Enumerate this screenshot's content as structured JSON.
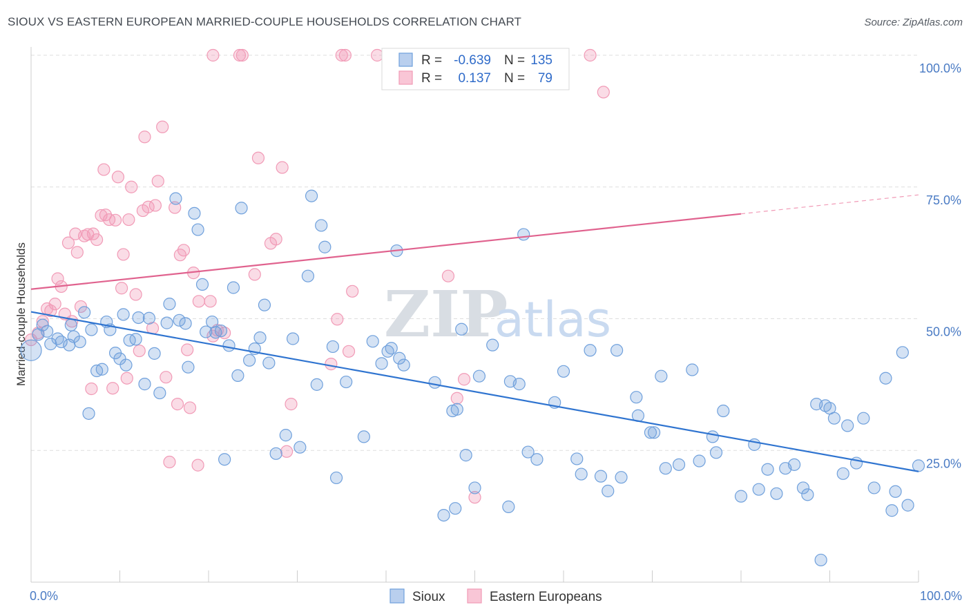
{
  "title": "SIOUX VS EASTERN EUROPEAN MARRIED-COUPLE HOUSEHOLDS CORRELATION CHART",
  "source": "Source: ZipAtlas.com",
  "watermark": {
    "zip": "ZIP",
    "atlas": "atlas"
  },
  "colors": {
    "sioux": "#6fa0dc",
    "sioux_line": "#2f74d0",
    "eastern": "#f19ab6",
    "eastern_line": "#e0628e",
    "tick_label": "#4a7bc4"
  },
  "legend_box": {
    "rows": [
      {
        "r_label": "R =",
        "r_value": "-0.639",
        "n_label": "N =",
        "n_value": "135"
      },
      {
        "r_label": "R =",
        "r_value": "0.137",
        "n_label": "N =",
        "n_value": "79"
      }
    ]
  },
  "bottom_legend": [
    "Sioux",
    "Eastern Europeans"
  ],
  "chart_data": {
    "type": "scatter",
    "title": "SIOUX VS EASTERN EUROPEAN MARRIED-COUPLE HOUSEHOLDS CORRELATION CHART",
    "xlabel": "",
    "ylabel": "Married-couple Households",
    "xlim": [
      0,
      100
    ],
    "ylim": [
      0,
      100
    ],
    "x_tick_labels": [
      "0.0%",
      "100.0%"
    ],
    "y_ticks": [
      25,
      50,
      75,
      100
    ],
    "y_tick_labels": [
      "25.0%",
      "50.0%",
      "75.0%",
      "100.0%"
    ],
    "grid": true,
    "legend_position": "top-center",
    "series": [
      {
        "name": "Sioux",
        "r": -0.639,
        "n": 135,
        "trend": {
          "x0": 0,
          "y0": 51.3,
          "x1": 100,
          "y1": 21.0
        },
        "points": [
          [
            0,
            44
          ],
          [
            0.8,
            47
          ],
          [
            1.3,
            48.8
          ],
          [
            1.8,
            47.6
          ],
          [
            2.2,
            45.2
          ],
          [
            3.0,
            46.2
          ],
          [
            3.4,
            45.6
          ],
          [
            4.3,
            45.0
          ],
          [
            4.5,
            48.8
          ],
          [
            4.8,
            46.6
          ],
          [
            5.5,
            45.6
          ],
          [
            6.0,
            51.2
          ],
          [
            6.5,
            32.0
          ],
          [
            6.8,
            47.9
          ],
          [
            7.4,
            40.1
          ],
          [
            8.0,
            40.4
          ],
          [
            8.5,
            49.4
          ],
          [
            8.9,
            47.9
          ],
          [
            9.5,
            43.5
          ],
          [
            10.0,
            42.4
          ],
          [
            10.4,
            50.8
          ],
          [
            10.7,
            41.2
          ],
          [
            11.1,
            45.9
          ],
          [
            11.8,
            46.1
          ],
          [
            12.1,
            50.2
          ],
          [
            12.8,
            37.6
          ],
          [
            13.3,
            50.1
          ],
          [
            13.9,
            43.4
          ],
          [
            14.5,
            35.9
          ],
          [
            15.3,
            49.2
          ],
          [
            15.6,
            52.8
          ],
          [
            16.3,
            72.8
          ],
          [
            16.7,
            49.7
          ],
          [
            17.4,
            49.1
          ],
          [
            17.7,
            40.8
          ],
          [
            18.4,
            70.0
          ],
          [
            18.8,
            66.9
          ],
          [
            19.3,
            56.5
          ],
          [
            19.7,
            47.5
          ],
          [
            20.4,
            49.4
          ],
          [
            20.8,
            47.4
          ],
          [
            21.4,
            47.7
          ],
          [
            21.8,
            23.3
          ],
          [
            22.3,
            44.9
          ],
          [
            22.8,
            55.9
          ],
          [
            23.3,
            39.2
          ],
          [
            23.7,
            71.0
          ],
          [
            24.6,
            42.1
          ],
          [
            25.2,
            44.3
          ],
          [
            25.8,
            46.4
          ],
          [
            26.3,
            52.6
          ],
          [
            26.8,
            41.6
          ],
          [
            27.6,
            24.4
          ],
          [
            28.7,
            27.9
          ],
          [
            29.5,
            46.2
          ],
          [
            30.3,
            25.6
          ],
          [
            31.2,
            58.1
          ],
          [
            31.6,
            73.3
          ],
          [
            32.2,
            37.5
          ],
          [
            32.7,
            67.7
          ],
          [
            33.1,
            63.6
          ],
          [
            34.0,
            44.7
          ],
          [
            34.4,
            19.8
          ],
          [
            35.5,
            38.0
          ],
          [
            37.5,
            27.6
          ],
          [
            38.5,
            45.7
          ],
          [
            39.5,
            41.5
          ],
          [
            40.2,
            43.8
          ],
          [
            40.6,
            44.4
          ],
          [
            41.2,
            62.9
          ],
          [
            41.5,
            42.5
          ],
          [
            42.0,
            41.2
          ],
          [
            45.5,
            37.9
          ],
          [
            46.5,
            12.7
          ],
          [
            47.5,
            32.5
          ],
          [
            47.8,
            14.0
          ],
          [
            48.0,
            32.8
          ],
          [
            48.5,
            48.0
          ],
          [
            49.0,
            24.1
          ],
          [
            50.0,
            17.9
          ],
          [
            50.5,
            39.1
          ],
          [
            52.0,
            45.0
          ],
          [
            53.8,
            14.3
          ],
          [
            54.0,
            38.1
          ],
          [
            55.0,
            37.6
          ],
          [
            55.5,
            66.0
          ],
          [
            56.0,
            24.7
          ],
          [
            57.0,
            23.3
          ],
          [
            59.0,
            34.1
          ],
          [
            60.0,
            40.0
          ],
          [
            61.5,
            23.4
          ],
          [
            62.0,
            20.5
          ],
          [
            63.0,
            44.0
          ],
          [
            64.2,
            20.1
          ],
          [
            65.0,
            17.3
          ],
          [
            66.0,
            44.0
          ],
          [
            66.5,
            19.9
          ],
          [
            68.2,
            35.1
          ],
          [
            68.4,
            31.6
          ],
          [
            69.8,
            28.4
          ],
          [
            70.2,
            28.4
          ],
          [
            71.0,
            39.1
          ],
          [
            71.5,
            21.6
          ],
          [
            73.0,
            22.3
          ],
          [
            74.5,
            40.3
          ],
          [
            75.3,
            23.0
          ],
          [
            76.8,
            27.6
          ],
          [
            77.2,
            24.6
          ],
          [
            78.0,
            32.5
          ],
          [
            80.0,
            16.3
          ],
          [
            81.5,
            26.1
          ],
          [
            82.0,
            17.6
          ],
          [
            83.0,
            21.4
          ],
          [
            84.0,
            16.8
          ],
          [
            85.0,
            21.6
          ],
          [
            86.0,
            22.3
          ],
          [
            87.0,
            17.9
          ],
          [
            87.5,
            16.6
          ],
          [
            88.5,
            33.8
          ],
          [
            89.0,
            4.2
          ],
          [
            89.5,
            33.5
          ],
          [
            90.0,
            33.0
          ],
          [
            90.5,
            31.1
          ],
          [
            91.5,
            20.6
          ],
          [
            92.0,
            29.7
          ],
          [
            93.0,
            22.6
          ],
          [
            93.8,
            31.1
          ],
          [
            95.0,
            17.9
          ],
          [
            96.3,
            38.7
          ],
          [
            97.0,
            13.6
          ],
          [
            97.4,
            17.2
          ],
          [
            98.2,
            43.6
          ],
          [
            98.8,
            14.6
          ],
          [
            100.0,
            22.1
          ]
        ]
      },
      {
        "name": "Eastern Europeans",
        "r": 0.137,
        "n": 79,
        "trend": {
          "x0": 0,
          "y0": 55.6,
          "x1": 80,
          "y1": 69.9,
          "x_dash_end": 100,
          "y_dash_end": 73.5
        },
        "points": [
          [
            0,
            46
          ],
          [
            0.8,
            47.3
          ],
          [
            1.3,
            49.5
          ],
          [
            1.8,
            51.9
          ],
          [
            2.2,
            51.5
          ],
          [
            2.7,
            52.8
          ],
          [
            3.0,
            57.6
          ],
          [
            3.4,
            56.1
          ],
          [
            3.8,
            50.9
          ],
          [
            4.2,
            64.4
          ],
          [
            4.6,
            49.5
          ],
          [
            5.0,
            66.1
          ],
          [
            5.2,
            62.6
          ],
          [
            5.6,
            52.3
          ],
          [
            6.0,
            65.7
          ],
          [
            6.4,
            66.0
          ],
          [
            6.8,
            36.7
          ],
          [
            7.0,
            66.1
          ],
          [
            7.4,
            65.0
          ],
          [
            7.9,
            69.6
          ],
          [
            8.2,
            78.3
          ],
          [
            8.4,
            69.7
          ],
          [
            8.8,
            68.8
          ],
          [
            9.2,
            36.8
          ],
          [
            9.5,
            68.7
          ],
          [
            9.8,
            76.9
          ],
          [
            10.2,
            55.8
          ],
          [
            10.4,
            62.2
          ],
          [
            10.8,
            38.7
          ],
          [
            11.0,
            68.8
          ],
          [
            11.3,
            75.0
          ],
          [
            11.8,
            54.6
          ],
          [
            12.2,
            43.9
          ],
          [
            12.6,
            70.5
          ],
          [
            12.8,
            84.5
          ],
          [
            13.2,
            71.2
          ],
          [
            13.7,
            48.2
          ],
          [
            14.0,
            71.5
          ],
          [
            14.3,
            76.1
          ],
          [
            14.8,
            86.4
          ],
          [
            15.2,
            38.9
          ],
          [
            15.6,
            22.8
          ],
          [
            16.2,
            71.1
          ],
          [
            16.5,
            33.8
          ],
          [
            16.8,
            62.1
          ],
          [
            17.2,
            63.0
          ],
          [
            17.6,
            44.1
          ],
          [
            17.9,
            33.1
          ],
          [
            18.3,
            58.7
          ],
          [
            18.8,
            22.2
          ],
          [
            18.9,
            53.3
          ],
          [
            20.2,
            53.3
          ],
          [
            20.5,
            46.7
          ],
          [
            21.0,
            47.8
          ],
          [
            21.8,
            47.3
          ],
          [
            20.5,
            100
          ],
          [
            23.5,
            100
          ],
          [
            23.8,
            100
          ],
          [
            25.2,
            58.4
          ],
          [
            25.6,
            80.5
          ],
          [
            27.0,
            64.3
          ],
          [
            27.6,
            65.1
          ],
          [
            28.3,
            78.7
          ],
          [
            28.8,
            24.8
          ],
          [
            29.3,
            33.8
          ],
          [
            33.8,
            41.4
          ],
          [
            34.5,
            49.9
          ],
          [
            35.0,
            100
          ],
          [
            35.4,
            100
          ],
          [
            35.8,
            43.8
          ],
          [
            36.2,
            55.2
          ],
          [
            39.0,
            100
          ],
          [
            47.0,
            58.1
          ],
          [
            48.0,
            34.9
          ],
          [
            48.8,
            38.5
          ],
          [
            50.0,
            16.1
          ],
          [
            63.0,
            100
          ],
          [
            64.5,
            93.0
          ]
        ]
      }
    ]
  }
}
